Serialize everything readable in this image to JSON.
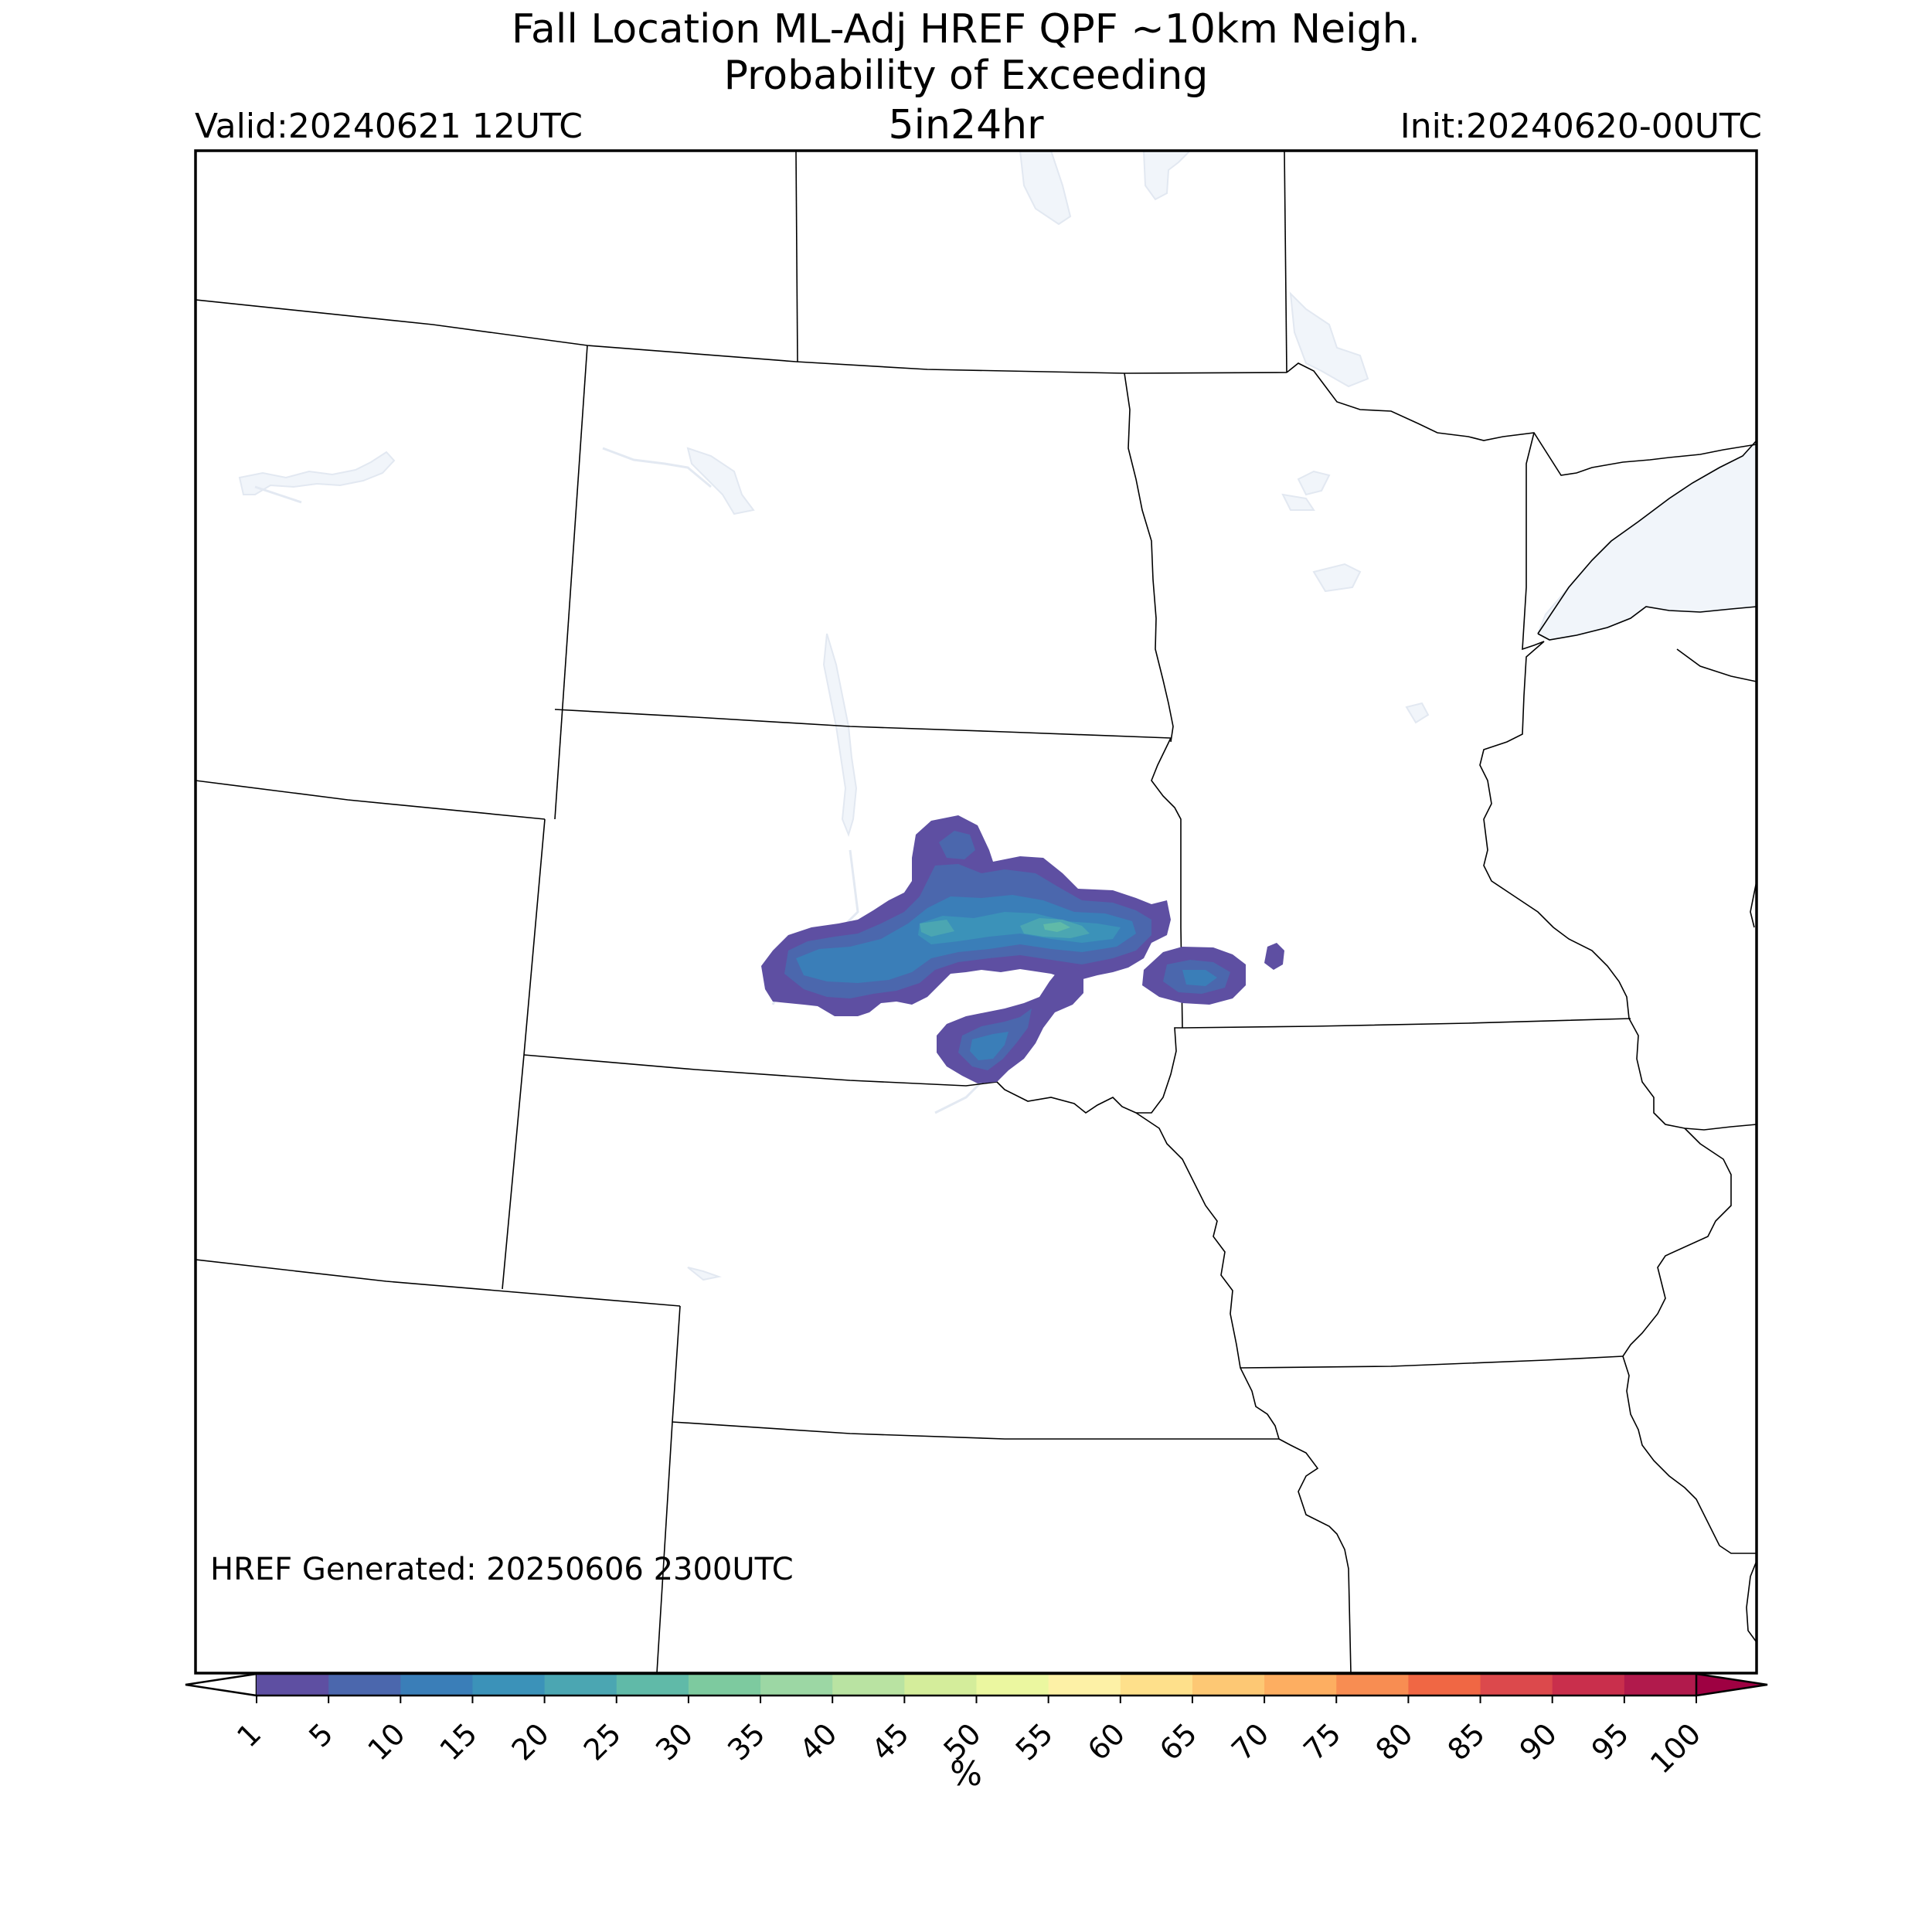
{
  "header": {
    "title_line1": "Fall Location ML-Adj HREF QPF ~10km Neigh.",
    "title_line2": "Probability of Exceeding",
    "threshold": "5in24hr",
    "valid": "Valid:20240621 12UTC",
    "init": "Init:20240620-00UTC"
  },
  "footer": {
    "generated": "HREF Generated: 20250606 2300UTC"
  },
  "colorbar": {
    "label": "%",
    "ticks": [
      "1",
      "5",
      "10",
      "15",
      "20",
      "25",
      "30",
      "35",
      "40",
      "45",
      "50",
      "55",
      "60",
      "65",
      "70",
      "75",
      "80",
      "85",
      "90",
      "95",
      "100"
    ],
    "colors": [
      "#5e4fa2",
      "#4b67ad",
      "#3a7eb8",
      "#3b92b9",
      "#4ba6b2",
      "#60baa8",
      "#7dca9f",
      "#9cd7a4",
      "#b9e3a2",
      "#d4ed9b",
      "#ebf7a0",
      "#fdf1a6",
      "#fee08b",
      "#fdc874",
      "#fdae61",
      "#f88d52",
      "#f06744",
      "#dc494c",
      "#c92f4c",
      "#b11a4c",
      "#9e0142"
    ],
    "under_color": "#ffffff",
    "over_color": "#9e0142"
  },
  "map": {
    "land_color": "#ffffff",
    "water_color": "#f1f5fa",
    "boundary_color": "#000000",
    "probability_scale_colors": [
      "#5e4fa2",
      "#4b67ad",
      "#3a7eb8",
      "#3b92b9",
      "#4ba6b2",
      "#60baa8"
    ]
  }
}
